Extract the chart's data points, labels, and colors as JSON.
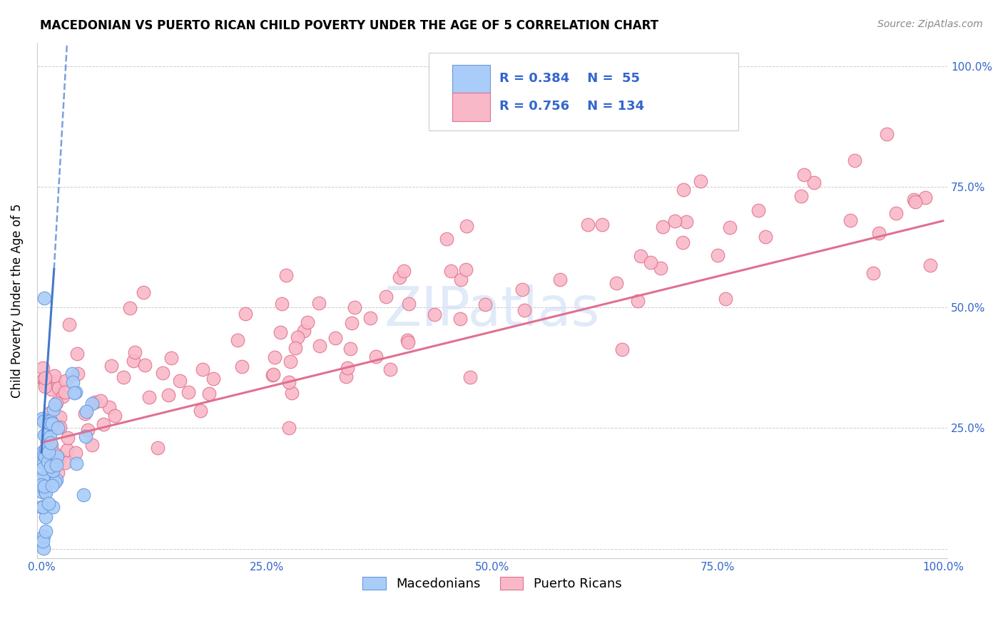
{
  "title": "MACEDONIAN VS PUERTO RICAN CHILD POVERTY UNDER THE AGE OF 5 CORRELATION CHART",
  "source": "Source: ZipAtlas.com",
  "ylabel": "Child Poverty Under the Age of 5",
  "macedonian_color": "#aaccf8",
  "macedonian_edge_color": "#6699dd",
  "macedonian_line_color": "#4477cc",
  "puerto_rican_color": "#f9b8c8",
  "puerto_rican_edge_color": "#e07090",
  "puerto_rican_line_color": "#e07090",
  "tick_color": "#3366cc",
  "legend_mac_R": "0.384",
  "legend_mac_N": "55",
  "legend_pr_R": "0.756",
  "legend_pr_N": "134",
  "watermark": "ZIPatlas"
}
